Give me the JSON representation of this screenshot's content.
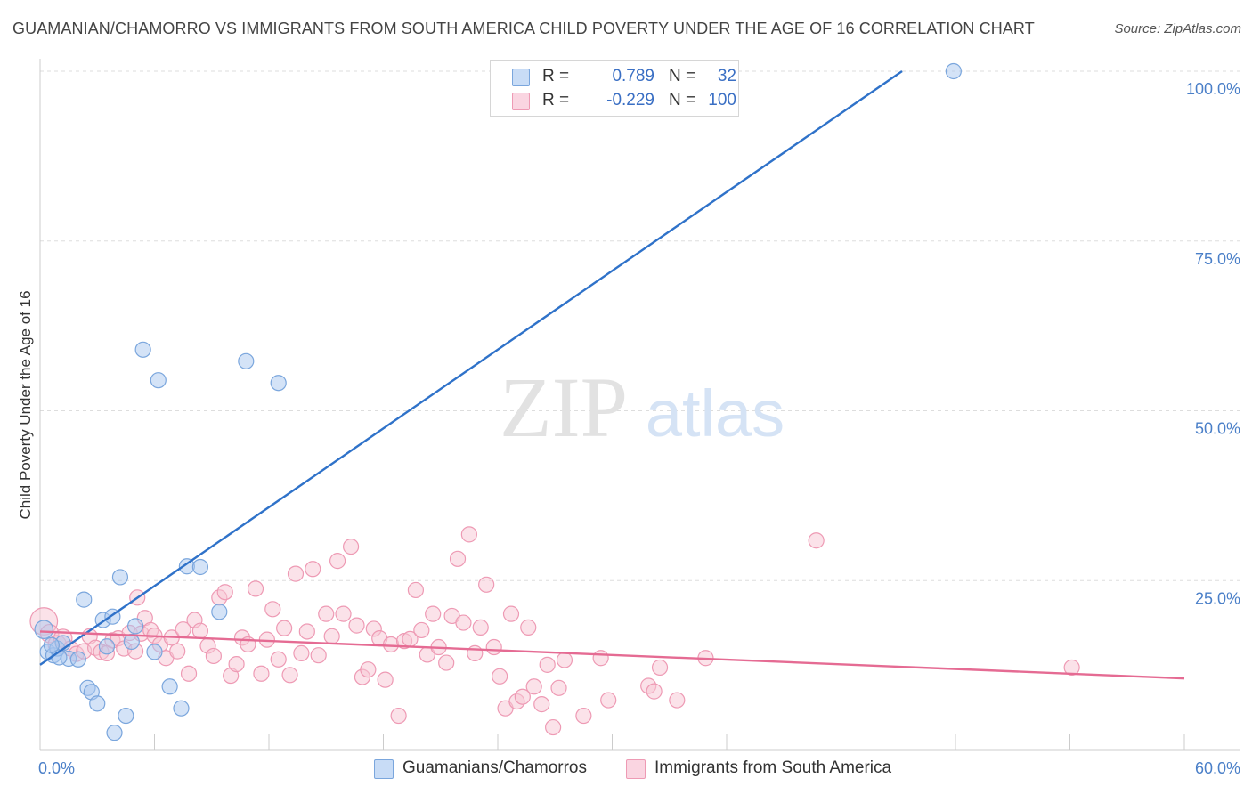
{
  "header": {
    "title": "GUAMANIAN/CHAMORRO VS IMMIGRANTS FROM SOUTH AMERICA CHILD POVERTY UNDER THE AGE OF 16 CORRELATION CHART",
    "source": "Source: ZipAtlas.com"
  },
  "watermark": {
    "zip": "ZIP",
    "atlas": "atlas"
  },
  "legend": {
    "r_label": "R =",
    "n_label": "N =",
    "rows": [
      {
        "r": "0.789",
        "n": "32"
      },
      {
        "r": "-0.229",
        "n": "100"
      }
    ]
  },
  "bottom_legend": {
    "series1": "Guamanians/Chamorros",
    "series2": "Immigrants from South America"
  },
  "colors": {
    "series1_fill": "#a9c8f0",
    "series1_stroke": "#7aa6dd",
    "series1_line": "#2f72c9",
    "series2_fill": "#f7c6d4",
    "series2_stroke": "#ee9ab4",
    "series2_line": "#e56b93",
    "axis_label": "#4a7fc8",
    "grid": "#dddddd"
  },
  "chart_data": {
    "type": "scatter",
    "title": "GUAMANIAN/CHAMORRO VS IMMIGRANTS FROM SOUTH AMERICA CHILD POVERTY UNDER THE AGE OF 16 CORRELATION CHART",
    "xlabel": "",
    "ylabel": "Child Poverty Under the Age of 16",
    "xlim": [
      0,
      60
    ],
    "ylim": [
      0,
      100
    ],
    "x_tick_labels": [
      "0.0%",
      "60.0%"
    ],
    "y_ticks": [
      25,
      50,
      75,
      100
    ],
    "y_tick_labels": [
      "25.0%",
      "50.0%",
      "75.0%",
      "100.0%"
    ],
    "grid": true,
    "legend_position": "top-center",
    "series": [
      {
        "name": "Guamanians/Chamorros",
        "r": 0.789,
        "n": 32,
        "trend": {
          "x": [
            0,
            45.2
          ],
          "y": [
            12.6,
            100
          ]
        },
        "points": [
          [
            0.2,
            17.8,
            1.2
          ],
          [
            0.4,
            14.5,
            1
          ],
          [
            0.7,
            14.0,
            1
          ],
          [
            0.9,
            15.0,
            1
          ],
          [
            1.2,
            15.8,
            1
          ],
          [
            1.5,
            13.5,
            1
          ],
          [
            2.0,
            13.4,
            1
          ],
          [
            2.3,
            22.2,
            1
          ],
          [
            2.5,
            9.2,
            1
          ],
          [
            2.7,
            8.6,
            1
          ],
          [
            3.0,
            6.9,
            1
          ],
          [
            3.3,
            19.2,
            1
          ],
          [
            3.5,
            15.3,
            1
          ],
          [
            3.8,
            19.7,
            1
          ],
          [
            4.2,
            25.5,
            1
          ],
          [
            4.5,
            5.1,
            1
          ],
          [
            3.9,
            2.6,
            1
          ],
          [
            4.8,
            16.0,
            1
          ],
          [
            5.0,
            18.3,
            1
          ],
          [
            5.4,
            59.0,
            1
          ],
          [
            6.2,
            54.5,
            1
          ],
          [
            6.0,
            14.5,
            1
          ],
          [
            6.8,
            9.4,
            1
          ],
          [
            7.4,
            6.2,
            1
          ],
          [
            7.7,
            27.1,
            1
          ],
          [
            8.4,
            27.0,
            1
          ],
          [
            9.4,
            20.4,
            1
          ],
          [
            10.8,
            57.3,
            1
          ],
          [
            12.5,
            54.1,
            1
          ],
          [
            47.9,
            100.0,
            1
          ],
          [
            1.0,
            13.7,
            1
          ],
          [
            0.6,
            15.5,
            1
          ]
        ]
      },
      {
        "name": "Immigrants from South America",
        "r": -0.229,
        "n": 100,
        "trend": {
          "x": [
            0,
            60
          ],
          "y": [
            17.5,
            10.6
          ]
        },
        "points": [
          [
            0.2,
            19.0,
            1.8
          ],
          [
            0.5,
            17.2,
            1.2
          ],
          [
            0.9,
            15.6,
            1.2
          ],
          [
            1.2,
            16.5,
            1.2
          ],
          [
            1.6,
            15.0,
            1
          ],
          [
            1.9,
            14.2,
            1
          ],
          [
            2.3,
            14.6,
            1
          ],
          [
            2.6,
            16.8,
            1
          ],
          [
            2.9,
            15.1,
            1
          ],
          [
            3.2,
            14.5,
            1
          ],
          [
            3.5,
            14.3,
            1
          ],
          [
            3.8,
            16.2,
            1
          ],
          [
            4.1,
            16.5,
            1
          ],
          [
            4.4,
            15.0,
            1
          ],
          [
            4.7,
            17.3,
            1
          ],
          [
            5.0,
            14.6,
            1
          ],
          [
            5.1,
            22.5,
            1
          ],
          [
            5.3,
            17.2,
            1
          ],
          [
            5.5,
            19.5,
            1
          ],
          [
            5.8,
            17.7,
            1
          ],
          [
            6.0,
            16.9,
            1
          ],
          [
            6.3,
            15.6,
            1
          ],
          [
            6.6,
            13.6,
            1
          ],
          [
            6.9,
            16.6,
            1
          ],
          [
            7.2,
            14.6,
            1
          ],
          [
            7.5,
            17.8,
            1
          ],
          [
            7.8,
            11.3,
            1
          ],
          [
            8.1,
            19.2,
            1
          ],
          [
            8.4,
            17.6,
            1
          ],
          [
            8.8,
            15.4,
            1
          ],
          [
            9.1,
            13.9,
            1
          ],
          [
            9.4,
            22.5,
            1
          ],
          [
            9.7,
            23.3,
            1
          ],
          [
            10.0,
            11.0,
            1
          ],
          [
            10.3,
            12.7,
            1
          ],
          [
            10.6,
            16.6,
            1
          ],
          [
            10.9,
            15.6,
            1
          ],
          [
            11.3,
            23.8,
            1
          ],
          [
            11.6,
            11.3,
            1
          ],
          [
            11.9,
            16.3,
            1
          ],
          [
            12.2,
            20.8,
            1
          ],
          [
            12.5,
            13.4,
            1
          ],
          [
            12.8,
            18.0,
            1
          ],
          [
            13.1,
            11.1,
            1
          ],
          [
            13.4,
            26.0,
            1
          ],
          [
            13.7,
            14.3,
            1
          ],
          [
            14.0,
            17.5,
            1
          ],
          [
            14.3,
            26.7,
            1
          ],
          [
            14.6,
            14.0,
            1
          ],
          [
            15.0,
            20.1,
            1
          ],
          [
            15.3,
            16.8,
            1
          ],
          [
            15.6,
            27.9,
            1
          ],
          [
            15.9,
            20.1,
            1
          ],
          [
            16.3,
            30.0,
            1
          ],
          [
            16.6,
            18.4,
            1
          ],
          [
            16.9,
            10.8,
            1
          ],
          [
            17.2,
            11.9,
            1
          ],
          [
            17.5,
            17.9,
            1
          ],
          [
            17.8,
            16.5,
            1
          ],
          [
            18.1,
            10.4,
            1
          ],
          [
            18.4,
            15.6,
            1
          ],
          [
            18.8,
            5.1,
            1
          ],
          [
            19.1,
            16.1,
            1
          ],
          [
            19.4,
            16.4,
            1
          ],
          [
            19.7,
            23.6,
            1
          ],
          [
            20.0,
            17.7,
            1
          ],
          [
            20.3,
            14.1,
            1
          ],
          [
            20.6,
            20.1,
            1
          ],
          [
            20.9,
            15.2,
            1
          ],
          [
            21.3,
            12.9,
            1
          ],
          [
            21.6,
            19.8,
            1
          ],
          [
            21.9,
            28.2,
            1
          ],
          [
            22.2,
            18.8,
            1
          ],
          [
            22.5,
            31.8,
            1
          ],
          [
            22.8,
            14.3,
            1
          ],
          [
            23.1,
            18.1,
            1
          ],
          [
            23.4,
            24.4,
            1
          ],
          [
            23.8,
            15.2,
            1
          ],
          [
            24.1,
            10.9,
            1
          ],
          [
            24.4,
            6.2,
            1
          ],
          [
            24.7,
            20.1,
            1
          ],
          [
            25.0,
            7.2,
            1
          ],
          [
            25.3,
            7.9,
            1
          ],
          [
            25.6,
            18.1,
            1
          ],
          [
            25.9,
            9.4,
            1
          ],
          [
            26.3,
            6.8,
            1
          ],
          [
            26.6,
            12.6,
            1
          ],
          [
            26.9,
            3.4,
            1
          ],
          [
            27.2,
            9.2,
            1
          ],
          [
            27.5,
            13.3,
            1
          ],
          [
            28.5,
            5.1,
            1
          ],
          [
            29.4,
            13.6,
            1
          ],
          [
            29.8,
            7.4,
            1
          ],
          [
            31.9,
            9.5,
            1
          ],
          [
            32.2,
            8.7,
            1
          ],
          [
            32.5,
            12.2,
            1
          ],
          [
            33.4,
            7.4,
            1
          ],
          [
            34.9,
            13.6,
            1
          ],
          [
            40.7,
            30.9,
            1
          ],
          [
            54.1,
            12.2,
            1
          ]
        ]
      }
    ]
  }
}
